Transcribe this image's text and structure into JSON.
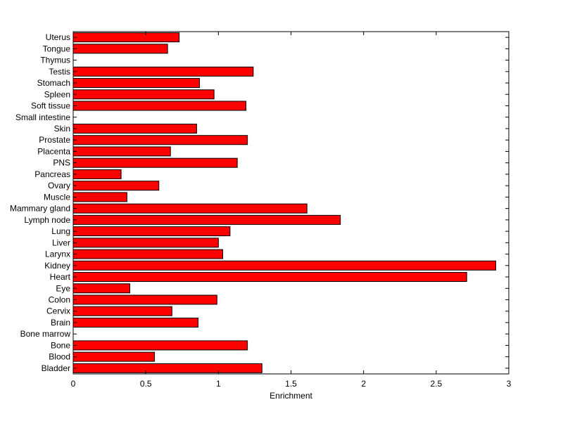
{
  "chart_data": {
    "type": "bar",
    "orientation": "horizontal",
    "title": "",
    "xlabel": "Enrichment",
    "ylabel": "",
    "xlim": [
      0,
      3
    ],
    "xticks": [
      0,
      0.5,
      1,
      1.5,
      2,
      2.5,
      3
    ],
    "xtick_labels": [
      "0",
      "0.5",
      "1",
      "1.5",
      "2",
      "2.5",
      "3"
    ],
    "grid": false,
    "bar_color": "#ff0000",
    "edge_color": "#000000",
    "categories": [
      "Bladder",
      "Blood",
      "Bone",
      "Bone marrow",
      "Brain",
      "Cervix",
      "Colon",
      "Eye",
      "Heart",
      "Kidney",
      "Larynx",
      "Liver",
      "Lung",
      "Lymph node",
      "Mammary gland",
      "Muscle",
      "Ovary",
      "Pancreas",
      "PNS",
      "Placenta",
      "Prostate",
      "Skin",
      "Small intestine",
      "Soft tissue",
      "Spleen",
      "Stomach",
      "Testis",
      "Thymus",
      "Tongue",
      "Uterus"
    ],
    "values": [
      1.3,
      0.56,
      1.2,
      0.0,
      0.86,
      0.68,
      0.99,
      0.39,
      2.71,
      2.91,
      1.03,
      1.0,
      1.08,
      1.84,
      1.61,
      0.37,
      0.59,
      0.33,
      1.13,
      0.67,
      1.2,
      0.85,
      0.0,
      1.19,
      0.97,
      0.87,
      1.24,
      0.0,
      0.65,
      0.73
    ]
  }
}
